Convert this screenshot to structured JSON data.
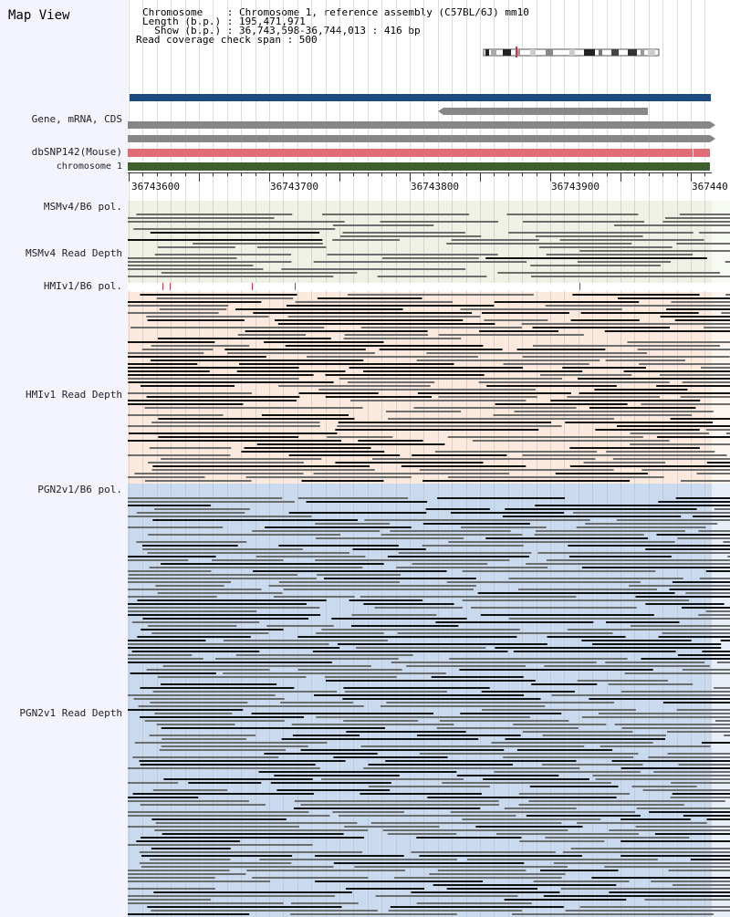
{
  "title": "Map View",
  "info": {
    "chromosome": "Chromosome    : Chromosome 1, reference assembly (C57BL/6J) mm10",
    "length": "Length (b.p.) : 195,471,971",
    "show": "  Show (b.p.) : 36,743,598-36,744,013 : 416 bp",
    "coverage": "Read coverage check span : 500"
  },
  "tracks": {
    "gene": "Gene, mRNA, CDS",
    "dbsnp": "dbSNP142(Mouse)",
    "chromosome": "chromosome 1",
    "msm_pol": "MSMv4/B6 pol.",
    "msm_depth": "MSMv4 Read Depth",
    "hmi_pol": "HMIv1/B6 pol.",
    "hmi_depth": "HMIv1 Read Depth",
    "pgn_pol": "PGN2v1/B6 pol.",
    "pgn_depth": "PGN2v1 Read Depth"
  },
  "axis": {
    "ticks": [
      "36743600",
      "36743700",
      "36743800",
      "36743900",
      "367440"
    ]
  },
  "colors": {
    "gene_blue": "#1d4a80",
    "gene_grey": "#878787",
    "snp_pink": "#e06c78",
    "chrom_green": "#3f5f2f",
    "msm_bg": "#eef1e4",
    "hmi_bg": "#fbe9dd",
    "pgn_bg": "#c9d9ee",
    "pol_mark": "#cc3344",
    "read_dark": "#111111",
    "read_grey": "#6d6d6d"
  },
  "icons": [
    "chromosome-ideogram-icon"
  ]
}
